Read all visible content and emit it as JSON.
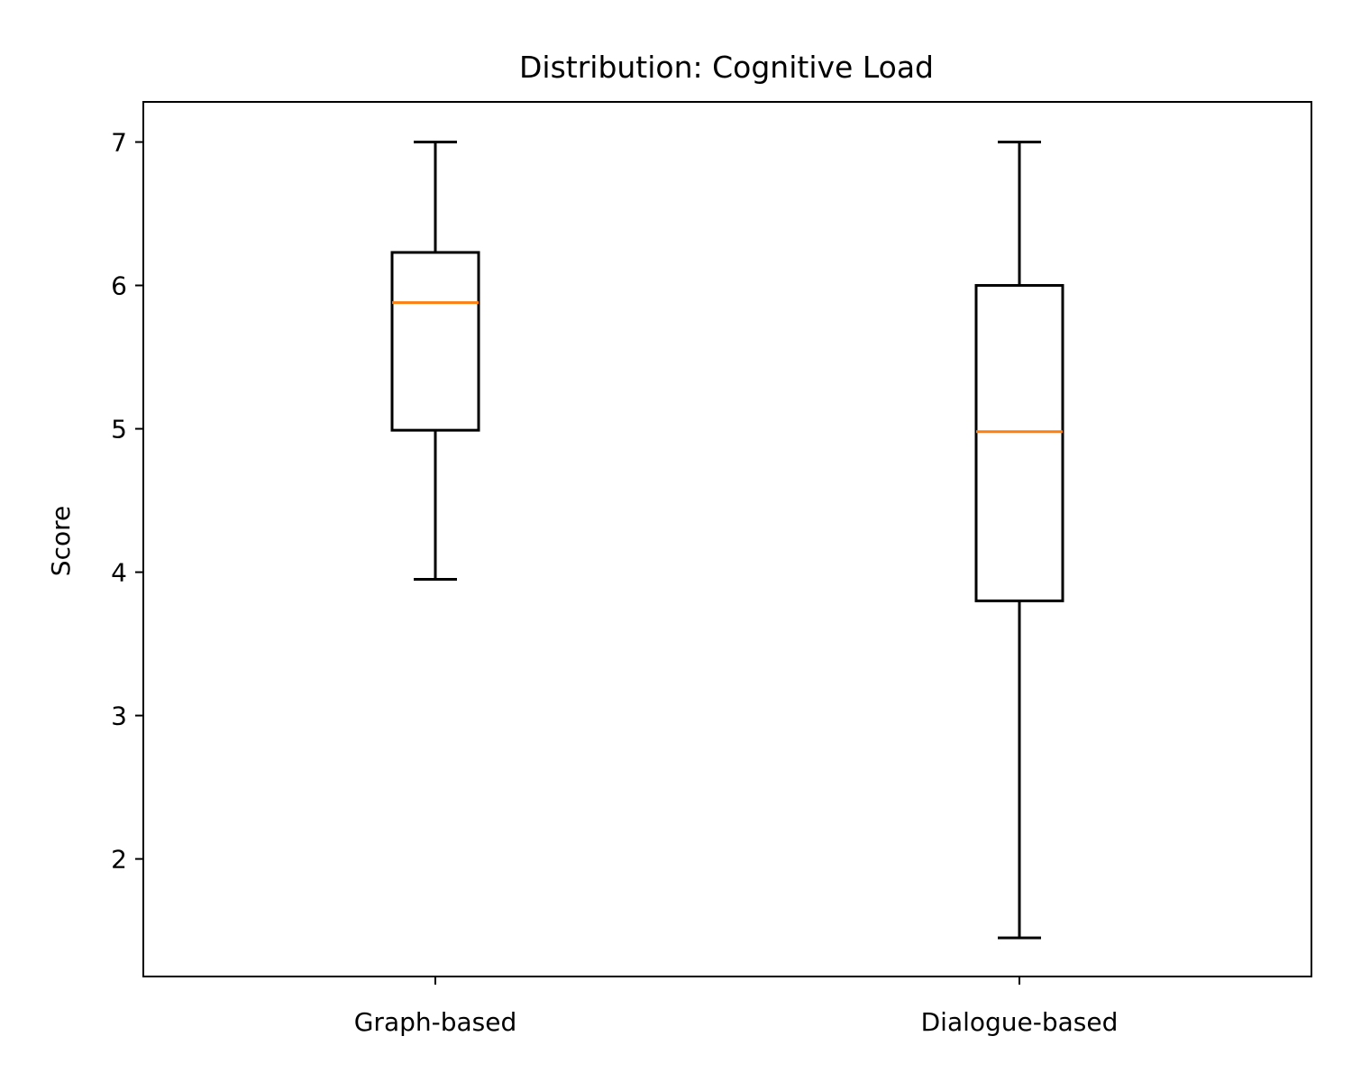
{
  "chart_data": {
    "type": "box",
    "title": "Distribution: Cognitive Load",
    "xlabel": "",
    "ylabel": "Score",
    "categories": [
      "Graph-based",
      "Dialogue-based"
    ],
    "boxes": [
      {
        "category": "Graph-based",
        "whisker_low": 3.95,
        "q1": 4.99,
        "median": 5.88,
        "q3": 6.23,
        "whisker_high": 7.0
      },
      {
        "category": "Dialogue-based",
        "whisker_low": 1.45,
        "q1": 3.8,
        "median": 4.98,
        "q3": 6.0,
        "whisker_high": 7.0
      }
    ],
    "yticks": [
      2,
      3,
      4,
      5,
      6,
      7
    ],
    "ylim": [
      1.18,
      7.28
    ],
    "grid": false,
    "colors": {
      "box": "#000000",
      "median": "#ff7f0e"
    }
  }
}
